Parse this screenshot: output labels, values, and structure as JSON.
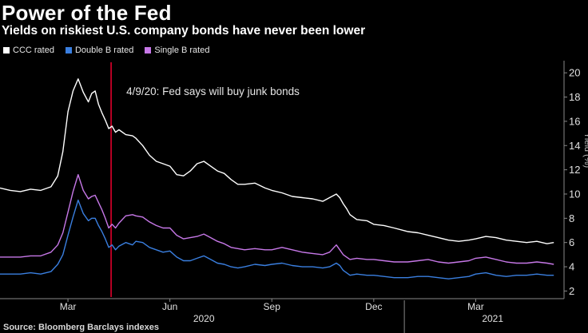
{
  "chart_data": {
    "type": "line",
    "title": "Power of the Fed",
    "subtitle": "Yields on riskiest U.S. company bonds have never been lower",
    "ylabel": "Yield (%)",
    "ylim": [
      1.5,
      21
    ],
    "yticks": [
      2,
      4,
      6,
      8,
      10,
      12,
      14,
      16,
      18,
      20
    ],
    "xlim": [
      0,
      16.6
    ],
    "xticks": [
      {
        "label": "Mar",
        "x": 2.0
      },
      {
        "label": "Jun",
        "x": 5.0
      },
      {
        "label": "Sep",
        "x": 8.0
      },
      {
        "label": "Dec",
        "x": 11.0
      },
      {
        "label": "Mar",
        "x": 14.0
      }
    ],
    "year_labels": [
      {
        "label": "2020",
        "x": 6.0
      },
      {
        "label": "2021",
        "x": 14.5
      }
    ],
    "year_divider_x": 11.9,
    "x_units": "months since Jan 1, 2020",
    "annotation": {
      "text": "4/9/20: Fed says will buy junk bonds",
      "x": 3.27,
      "color": "#e0002b"
    },
    "series": [
      {
        "name": "CCC rated",
        "color": "#ffffff",
        "x": [
          0,
          0.3,
          0.6,
          0.9,
          1.2,
          1.5,
          1.7,
          1.85,
          2.0,
          2.15,
          2.3,
          2.45,
          2.6,
          2.7,
          2.8,
          2.9,
          3.0,
          3.1,
          3.2,
          3.3,
          3.4,
          3.5,
          3.7,
          3.9,
          4.0,
          4.2,
          4.4,
          4.6,
          4.8,
          5.0,
          5.2,
          5.4,
          5.6,
          5.8,
          6.0,
          6.2,
          6.4,
          6.6,
          6.8,
          7.0,
          7.2,
          7.5,
          7.8,
          8.0,
          8.3,
          8.6,
          8.9,
          9.2,
          9.5,
          9.7,
          9.9,
          10.0,
          10.1,
          10.2,
          10.3,
          10.5,
          10.8,
          11.0,
          11.3,
          11.6,
          12.0,
          12.3,
          12.6,
          12.9,
          13.2,
          13.5,
          13.8,
          14.0,
          14.3,
          14.6,
          14.9,
          15.2,
          15.5,
          15.8,
          16.1,
          16.3
        ],
        "values": [
          10.5,
          10.3,
          10.2,
          10.4,
          10.3,
          10.6,
          11.5,
          13.5,
          16.8,
          18.5,
          19.5,
          18.4,
          17.6,
          18.3,
          18.5,
          17.4,
          16.7,
          16.1,
          15.4,
          15.6,
          15.1,
          15.3,
          14.9,
          14.8,
          14.6,
          14.0,
          13.2,
          12.7,
          12.5,
          12.3,
          11.6,
          11.5,
          11.9,
          12.5,
          12.7,
          12.3,
          11.9,
          11.7,
          11.2,
          10.8,
          10.8,
          10.9,
          10.5,
          10.3,
          10.1,
          9.8,
          9.7,
          9.6,
          9.4,
          9.7,
          10.0,
          9.7,
          9.2,
          8.8,
          8.3,
          7.9,
          7.8,
          7.5,
          7.4,
          7.2,
          6.9,
          6.8,
          6.6,
          6.4,
          6.2,
          6.1,
          6.2,
          6.3,
          6.5,
          6.4,
          6.2,
          6.1,
          6.0,
          6.1,
          5.9,
          6.0
        ]
      },
      {
        "name": "Double B rated",
        "color": "#3a7fe0",
        "x": [
          0,
          0.3,
          0.6,
          0.9,
          1.2,
          1.5,
          1.7,
          1.85,
          2.0,
          2.15,
          2.3,
          2.45,
          2.6,
          2.7,
          2.8,
          2.9,
          3.0,
          3.1,
          3.2,
          3.3,
          3.4,
          3.5,
          3.7,
          3.9,
          4.0,
          4.2,
          4.4,
          4.6,
          4.8,
          5.0,
          5.2,
          5.4,
          5.6,
          5.8,
          6.0,
          6.2,
          6.4,
          6.6,
          6.8,
          7.0,
          7.2,
          7.5,
          7.8,
          8.0,
          8.3,
          8.6,
          8.9,
          9.2,
          9.5,
          9.7,
          9.9,
          10.0,
          10.1,
          10.2,
          10.3,
          10.5,
          10.8,
          11.0,
          11.3,
          11.6,
          12.0,
          12.3,
          12.6,
          12.9,
          13.2,
          13.5,
          13.8,
          14.0,
          14.3,
          14.6,
          14.9,
          15.2,
          15.5,
          15.8,
          16.1,
          16.3
        ],
        "values": [
          3.4,
          3.4,
          3.4,
          3.5,
          3.4,
          3.6,
          4.2,
          5.0,
          6.6,
          8.1,
          9.5,
          8.4,
          7.8,
          8.0,
          8.0,
          7.4,
          6.9,
          6.3,
          5.6,
          5.8,
          5.4,
          5.7,
          6.0,
          5.8,
          6.1,
          6.0,
          5.6,
          5.4,
          5.2,
          5.3,
          4.8,
          4.5,
          4.5,
          4.7,
          4.9,
          4.6,
          4.3,
          4.2,
          4.0,
          3.9,
          4.0,
          4.2,
          4.1,
          4.2,
          4.3,
          4.1,
          4.0,
          4.0,
          3.9,
          4.0,
          4.3,
          4.1,
          3.7,
          3.5,
          3.3,
          3.4,
          3.3,
          3.3,
          3.2,
          3.1,
          3.1,
          3.2,
          3.2,
          3.1,
          3.0,
          3.1,
          3.2,
          3.4,
          3.5,
          3.3,
          3.2,
          3.3,
          3.3,
          3.4,
          3.3,
          3.3
        ]
      },
      {
        "name": "Single B rated",
        "color": "#c778e8",
        "x": [
          0,
          0.3,
          0.6,
          0.9,
          1.2,
          1.5,
          1.7,
          1.85,
          2.0,
          2.15,
          2.3,
          2.45,
          2.6,
          2.7,
          2.8,
          2.9,
          3.0,
          3.1,
          3.2,
          3.3,
          3.4,
          3.5,
          3.7,
          3.9,
          4.0,
          4.2,
          4.4,
          4.6,
          4.8,
          5.0,
          5.2,
          5.4,
          5.6,
          5.8,
          6.0,
          6.2,
          6.4,
          6.6,
          6.8,
          7.0,
          7.2,
          7.5,
          7.8,
          8.0,
          8.3,
          8.6,
          8.9,
          9.2,
          9.5,
          9.7,
          9.9,
          10.0,
          10.1,
          10.2,
          10.3,
          10.5,
          10.8,
          11.0,
          11.3,
          11.6,
          12.0,
          12.3,
          12.6,
          12.9,
          13.2,
          13.5,
          13.8,
          14.0,
          14.3,
          14.6,
          14.9,
          15.2,
          15.5,
          15.8,
          16.1,
          16.3
        ],
        "values": [
          4.8,
          4.8,
          4.8,
          4.9,
          4.9,
          5.2,
          5.8,
          6.8,
          8.5,
          10.2,
          11.6,
          10.3,
          9.6,
          9.8,
          9.9,
          9.3,
          8.7,
          8.0,
          7.2,
          7.5,
          7.2,
          7.6,
          8.2,
          8.3,
          8.2,
          8.1,
          7.7,
          7.4,
          7.2,
          7.2,
          6.6,
          6.3,
          6.4,
          6.5,
          6.7,
          6.4,
          6.1,
          5.9,
          5.6,
          5.5,
          5.4,
          5.5,
          5.4,
          5.4,
          5.6,
          5.4,
          5.2,
          5.1,
          5.0,
          5.2,
          5.8,
          5.4,
          5.0,
          4.8,
          4.6,
          4.7,
          4.6,
          4.6,
          4.5,
          4.4,
          4.4,
          4.5,
          4.6,
          4.4,
          4.3,
          4.4,
          4.5,
          4.7,
          4.8,
          4.6,
          4.4,
          4.3,
          4.3,
          4.4,
          4.3,
          4.2
        ]
      }
    ]
  },
  "source": "Source: Bloomberg Barclays indexes"
}
